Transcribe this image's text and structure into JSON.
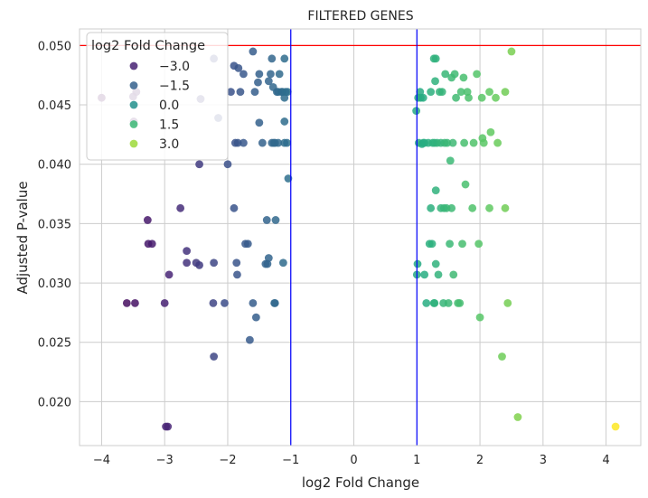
{
  "chart_data": {
    "type": "scatter",
    "title": "FILTERED GENES",
    "xlabel": "log2 Fold Change",
    "ylabel": "Adjusted P-value",
    "xlim": [
      -4.35,
      4.55
    ],
    "ylim": [
      0.0163,
      0.0514
    ],
    "xticks": [
      -4,
      -3,
      -2,
      -1,
      0,
      1,
      2,
      3,
      4
    ],
    "xtick_labels": [
      "−4",
      "−3",
      "−2",
      "−1",
      "0",
      "1",
      "2",
      "3",
      "4"
    ],
    "yticks": [
      0.02,
      0.025,
      0.03,
      0.035,
      0.04,
      0.045,
      0.05
    ],
    "ytick_labels": [
      "0.020",
      "0.025",
      "0.030",
      "0.035",
      "0.040",
      "0.045",
      "0.050"
    ],
    "grid": true,
    "colormap": "viridis",
    "color_range": [
      -4,
      4.15
    ],
    "hlines": [
      {
        "y": 0.05,
        "color": "#ff0000"
      }
    ],
    "vlines": [
      {
        "x": -1,
        "color": "#0000ff"
      },
      {
        "x": 1,
        "color": "#0000ff"
      }
    ],
    "legend": {
      "title": "log2 Fold Change",
      "placement": "upper-left",
      "entries": [
        {
          "label": "−3.0",
          "value": -3.0
        },
        {
          "label": "−1.5",
          "value": -1.5
        },
        {
          "label": "0.0",
          "value": 0.0
        },
        {
          "label": "1.5",
          "value": 1.5
        },
        {
          "label": "3.0",
          "value": 3.0
        }
      ]
    },
    "points": [
      [
        -4.0,
        0.0456
      ],
      [
        -3.6,
        0.0283
      ],
      [
        -3.47,
        0.0283
      ],
      [
        -3.5,
        0.0457
      ],
      [
        -3.49,
        0.0436
      ],
      [
        -3.45,
        0.0461
      ],
      [
        -3.27,
        0.0353
      ],
      [
        -3.26,
        0.0333
      ],
      [
        -3.2,
        0.0333
      ],
      [
        -3.0,
        0.0283
      ],
      [
        -2.98,
        0.0179
      ],
      [
        -2.95,
        0.0179
      ],
      [
        -2.93,
        0.0307
      ],
      [
        -2.75,
        0.0363
      ],
      [
        -2.65,
        0.0327
      ],
      [
        -2.65,
        0.0317
      ],
      [
        -2.5,
        0.0317
      ],
      [
        -2.45,
        0.0315
      ],
      [
        -2.45,
        0.04
      ],
      [
        -2.43,
        0.0455
      ],
      [
        -2.23,
        0.0283
      ],
      [
        -2.22,
        0.0317
      ],
      [
        -2.22,
        0.0238
      ],
      [
        -2.22,
        0.0489
      ],
      [
        -2.15,
        0.0439
      ],
      [
        -2.05,
        0.0283
      ],
      [
        -2.0,
        0.04
      ],
      [
        -1.95,
        0.0461
      ],
      [
        -1.9,
        0.0483
      ],
      [
        -1.9,
        0.0363
      ],
      [
        -1.88,
        0.0418
      ],
      [
        -1.86,
        0.0317
      ],
      [
        -1.85,
        0.0307
      ],
      [
        -1.84,
        0.0418
      ],
      [
        -1.83,
        0.0481
      ],
      [
        -1.8,
        0.0461
      ],
      [
        -1.75,
        0.0476
      ],
      [
        -1.75,
        0.0418
      ],
      [
        -1.72,
        0.0333
      ],
      [
        -1.68,
        0.0333
      ],
      [
        -1.65,
        0.0252
      ],
      [
        -1.6,
        0.0283
      ],
      [
        -1.6,
        0.0495
      ],
      [
        -1.57,
        0.0461
      ],
      [
        -1.55,
        0.0271
      ],
      [
        -1.52,
        0.0469
      ],
      [
        -1.5,
        0.0476
      ],
      [
        -1.5,
        0.0435
      ],
      [
        -1.45,
        0.0418
      ],
      [
        -1.4,
        0.0316
      ],
      [
        -1.38,
        0.0353
      ],
      [
        -1.37,
        0.0316
      ],
      [
        -1.35,
        0.0321
      ],
      [
        -1.35,
        0.047
      ],
      [
        -1.32,
        0.0476
      ],
      [
        -1.3,
        0.0418
      ],
      [
        -1.3,
        0.0489
      ],
      [
        -1.28,
        0.0465
      ],
      [
        -1.27,
        0.0418
      ],
      [
        -1.26,
        0.0283
      ],
      [
        -1.25,
        0.0418
      ],
      [
        -1.25,
        0.0283
      ],
      [
        -1.24,
        0.0353
      ],
      [
        -1.22,
        0.0461
      ],
      [
        -1.2,
        0.0461
      ],
      [
        -1.2,
        0.0418
      ],
      [
        -1.18,
        0.0476
      ],
      [
        -1.15,
        0.0461
      ],
      [
        -1.13,
        0.0461
      ],
      [
        -1.12,
        0.0317
      ],
      [
        -1.1,
        0.0418
      ],
      [
        -1.1,
        0.0456
      ],
      [
        -1.1,
        0.0489
      ],
      [
        -1.1,
        0.0436
      ],
      [
        -1.08,
        0.0461
      ],
      [
        -1.06,
        0.0418
      ],
      [
        -1.05,
        0.0461
      ],
      [
        -1.04,
        0.0388
      ],
      [
        0.99,
        0.0445
      ],
      [
        1.0,
        0.0307
      ],
      [
        1.01,
        0.0316
      ],
      [
        1.02,
        0.0456
      ],
      [
        1.03,
        0.0418
      ],
      [
        1.05,
        0.0461
      ],
      [
        1.06,
        0.0456
      ],
      [
        1.08,
        0.0417
      ],
      [
        1.1,
        0.0456
      ],
      [
        1.1,
        0.0418
      ],
      [
        1.12,
        0.0307
      ],
      [
        1.12,
        0.0418
      ],
      [
        1.15,
        0.0283
      ],
      [
        1.18,
        0.0418
      ],
      [
        1.2,
        0.0333
      ],
      [
        1.22,
        0.0461
      ],
      [
        1.22,
        0.0363
      ],
      [
        1.24,
        0.0333
      ],
      [
        1.25,
        0.0418
      ],
      [
        1.27,
        0.0489
      ],
      [
        1.27,
        0.0283
      ],
      [
        1.28,
        0.0283
      ],
      [
        1.28,
        0.0418
      ],
      [
        1.29,
        0.047
      ],
      [
        1.3,
        0.0489
      ],
      [
        1.3,
        0.0378
      ],
      [
        1.3,
        0.0316
      ],
      [
        1.32,
        0.0418
      ],
      [
        1.34,
        0.0307
      ],
      [
        1.36,
        0.0461
      ],
      [
        1.38,
        0.0418
      ],
      [
        1.38,
        0.0363
      ],
      [
        1.4,
        0.0461
      ],
      [
        1.42,
        0.0283
      ],
      [
        1.43,
        0.0363
      ],
      [
        1.44,
        0.0418
      ],
      [
        1.45,
        0.0476
      ],
      [
        1.47,
        0.0363
      ],
      [
        1.48,
        0.0418
      ],
      [
        1.5,
        0.0283
      ],
      [
        1.52,
        0.0333
      ],
      [
        1.53,
        0.0403
      ],
      [
        1.55,
        0.0363
      ],
      [
        1.55,
        0.0473
      ],
      [
        1.57,
        0.0418
      ],
      [
        1.58,
        0.0307
      ],
      [
        1.6,
        0.0476
      ],
      [
        1.62,
        0.0456
      ],
      [
        1.65,
        0.0283
      ],
      [
        1.68,
        0.0283
      ],
      [
        1.7,
        0.0461
      ],
      [
        1.72,
        0.0333
      ],
      [
        1.74,
        0.0473
      ],
      [
        1.75,
        0.0418
      ],
      [
        1.77,
        0.0383
      ],
      [
        1.8,
        0.0461
      ],
      [
        1.82,
        0.0456
      ],
      [
        1.88,
        0.0363
      ],
      [
        1.9,
        0.0418
      ],
      [
        1.95,
        0.0476
      ],
      [
        1.98,
        0.0333
      ],
      [
        2.0,
        0.0271
      ],
      [
        2.03,
        0.0456
      ],
      [
        2.04,
        0.0422
      ],
      [
        2.06,
        0.0418
      ],
      [
        2.15,
        0.0461
      ],
      [
        2.15,
        0.0363
      ],
      [
        2.17,
        0.0427
      ],
      [
        2.25,
        0.0456
      ],
      [
        2.28,
        0.0418
      ],
      [
        2.35,
        0.0238
      ],
      [
        2.4,
        0.0363
      ],
      [
        2.4,
        0.0461
      ],
      [
        2.44,
        0.0283
      ],
      [
        2.5,
        0.0495
      ],
      [
        2.6,
        0.0187
      ],
      [
        4.15,
        0.0179
      ]
    ]
  }
}
